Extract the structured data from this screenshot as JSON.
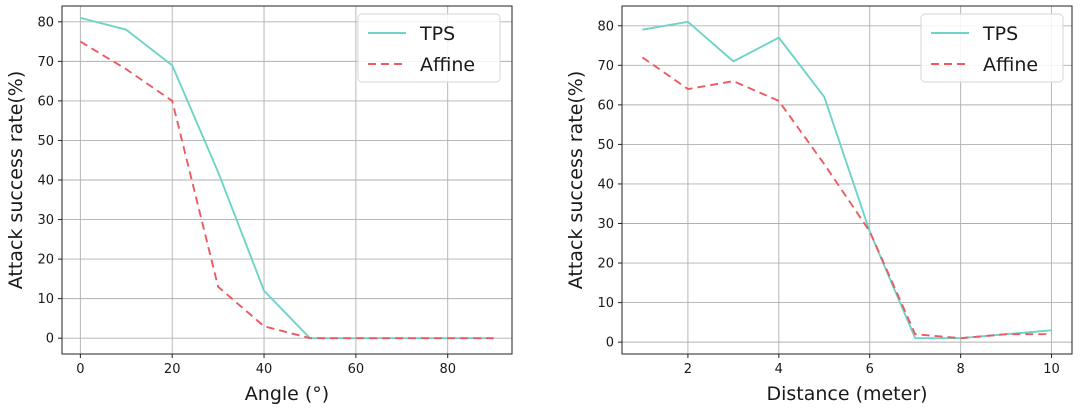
{
  "chart_data": [
    {
      "type": "line",
      "xlabel": "Angle (°)",
      "ylabel": "Attack success rate(%)",
      "xlim": [
        -4,
        94
      ],
      "ylim": [
        -4,
        84
      ],
      "xticks": [
        0,
        20,
        40,
        60,
        80
      ],
      "yticks": [
        0,
        10,
        20,
        30,
        40,
        50,
        60,
        70,
        80
      ],
      "grid": true,
      "legend_position": "top-right",
      "series": [
        {
          "name": "TPS",
          "style": "solid",
          "color": "#6fd3c8",
          "x": [
            0,
            10,
            20,
            30,
            40,
            50,
            60,
            70,
            80,
            90
          ],
          "y": [
            81,
            78,
            69,
            42,
            12,
            0,
            0,
            0,
            0,
            0
          ]
        },
        {
          "name": "Affine",
          "style": "dashed",
          "color": "#ee5a62",
          "x": [
            0,
            10,
            20,
            30,
            40,
            50,
            60,
            70,
            80,
            90
          ],
          "y": [
            75,
            68,
            60,
            13,
            3,
            0,
            0,
            0,
            0,
            0
          ]
        }
      ]
    },
    {
      "type": "line",
      "xlabel": "Distance (meter)",
      "ylabel": "Attack success rate(%)",
      "xlim": [
        0.55,
        10.45
      ],
      "ylim": [
        -3,
        85
      ],
      "xticks": [
        2,
        4,
        6,
        8,
        10
      ],
      "yticks": [
        0,
        10,
        20,
        30,
        40,
        50,
        60,
        70,
        80
      ],
      "grid": true,
      "legend_position": "top-right",
      "series": [
        {
          "name": "TPS",
          "style": "solid",
          "color": "#6fd3c8",
          "x": [
            1,
            2,
            3,
            4,
            5,
            6,
            7,
            8,
            9,
            10
          ],
          "y": [
            79,
            81,
            71,
            77,
            62,
            28,
            1,
            1,
            2,
            3
          ]
        },
        {
          "name": "Affine",
          "style": "dashed",
          "color": "#ee5a62",
          "x": [
            1,
            2,
            3,
            4,
            5,
            6,
            7,
            8,
            9,
            10
          ],
          "y": [
            72,
            64,
            66,
            61,
            45,
            28,
            2,
            1,
            2,
            2
          ]
        }
      ]
    }
  ]
}
